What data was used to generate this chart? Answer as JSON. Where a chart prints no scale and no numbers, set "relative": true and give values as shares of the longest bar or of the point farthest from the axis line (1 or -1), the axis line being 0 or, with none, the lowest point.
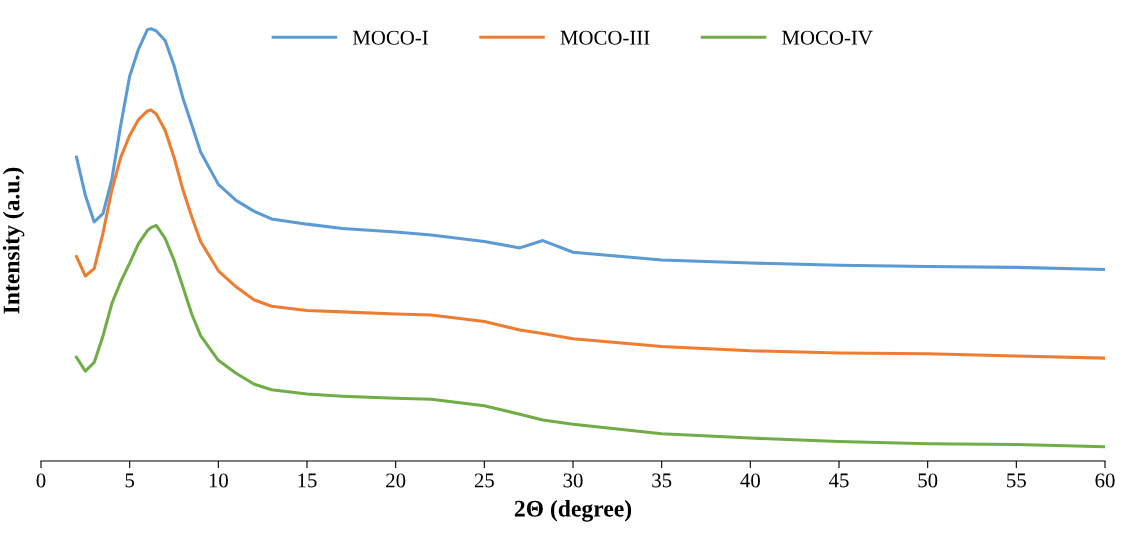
{
  "chart_data": {
    "type": "line",
    "xlabel": "2Θ (degree)",
    "ylabel": "Intensity (a.u.)",
    "relative": true,
    "x": [
      2,
      2.5,
      3,
      3.5,
      4,
      4.5,
      5,
      5.5,
      6,
      6.2,
      6.5,
      7,
      7.5,
      8,
      8.5,
      9,
      10,
      11,
      12,
      13,
      15,
      17,
      20,
      22,
      25,
      27,
      28.3,
      30,
      35,
      40,
      45,
      50,
      55,
      60
    ],
    "series": [
      {
        "name": "MOCO-I",
        "color": "#5b9bd5",
        "values": [
          0.703,
          0.615,
          0.553,
          0.573,
          0.653,
          0.778,
          0.89,
          0.953,
          0.998,
          1.0,
          0.995,
          0.973,
          0.915,
          0.84,
          0.778,
          0.715,
          0.64,
          0.603,
          0.578,
          0.56,
          0.548,
          0.538,
          0.53,
          0.523,
          0.508,
          0.493,
          0.51,
          0.483,
          0.465,
          0.458,
          0.453,
          0.45,
          0.448,
          0.443
        ]
      },
      {
        "name": "MOCO-III",
        "color": "#ed7d31",
        "values": [
          0.473,
          0.428,
          0.445,
          0.528,
          0.628,
          0.703,
          0.753,
          0.79,
          0.81,
          0.812,
          0.803,
          0.765,
          0.703,
          0.628,
          0.565,
          0.508,
          0.44,
          0.403,
          0.373,
          0.358,
          0.348,
          0.345,
          0.34,
          0.338,
          0.323,
          0.303,
          0.295,
          0.283,
          0.265,
          0.255,
          0.25,
          0.248,
          0.243,
          0.238
        ]
      },
      {
        "name": "MOCO-IV",
        "color": "#70ad47",
        "values": [
          0.24,
          0.208,
          0.228,
          0.29,
          0.365,
          0.415,
          0.458,
          0.503,
          0.533,
          0.54,
          0.545,
          0.515,
          0.465,
          0.403,
          0.34,
          0.29,
          0.233,
          0.203,
          0.178,
          0.165,
          0.155,
          0.15,
          0.145,
          0.143,
          0.128,
          0.108,
          0.095,
          0.085,
          0.063,
          0.053,
          0.045,
          0.04,
          0.038,
          0.033
        ]
      }
    ],
    "xlim": [
      0,
      60
    ],
    "xticks": [
      0,
      5,
      10,
      15,
      20,
      25,
      30,
      35,
      40,
      45,
      50,
      55,
      60
    ],
    "grid": false,
    "legend": "top",
    "marker": "none",
    "line_style": "solid",
    "tick_labels": "x"
  }
}
